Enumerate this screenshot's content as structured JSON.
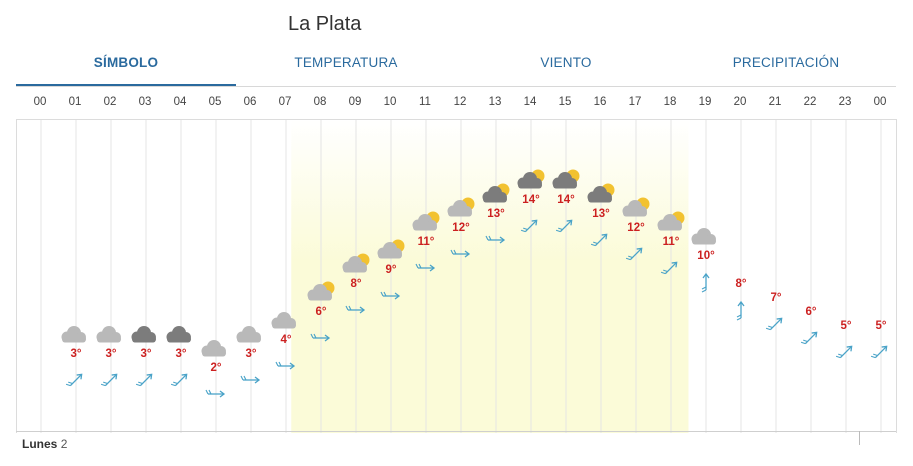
{
  "header": {
    "title": "La Plata"
  },
  "tabs": [
    {
      "label": "SÍMBOLO",
      "active": true
    },
    {
      "label": "TEMPERATURA",
      "active": false
    },
    {
      "label": "VIENTO",
      "active": false
    },
    {
      "label": "PRECIPITACIÓN",
      "active": false
    }
  ],
  "hours": [
    "00",
    "01",
    "02",
    "03",
    "04",
    "05",
    "06",
    "07",
    "08",
    "09",
    "10",
    "11",
    "12",
    "13",
    "14",
    "15",
    "16",
    "17",
    "18",
    "19",
    "20",
    "21",
    "22",
    "23",
    "00"
  ],
  "colors": {
    "tab_text": "#2a6a9e",
    "temp": "#cc2020",
    "wind": "#4aa3c8",
    "moon": "#4b3c8c",
    "sun": "#f2c230",
    "cloud_light": "#b9b9b9",
    "cloud_dark": "#7c7c7c",
    "daylight": "#fbfbd8"
  },
  "daylight_hours": {
    "start": 7.15,
    "end": 18.5
  },
  "forecast": [
    {
      "hour": "01",
      "temp_value": 3,
      "temp": "3°",
      "icon": "cloud-moon-icon",
      "cloud": "light",
      "wind": "ne"
    },
    {
      "hour": "02",
      "temp_value": 3,
      "temp": "3°",
      "icon": "cloud-moon-icon",
      "cloud": "light",
      "wind": "ne"
    },
    {
      "hour": "03",
      "temp_value": 3,
      "temp": "3°",
      "icon": "cloud-moon-icon",
      "cloud": "dark",
      "wind": "ne"
    },
    {
      "hour": "04",
      "temp_value": 3,
      "temp": "3°",
      "icon": "cloud-moon-icon",
      "cloud": "dark",
      "wind": "ne"
    },
    {
      "hour": "05",
      "temp_value": 2,
      "temp": "2°",
      "icon": "cloud-moon-icon",
      "cloud": "light",
      "wind": "e"
    },
    {
      "hour": "06",
      "temp_value": 3,
      "temp": "3°",
      "icon": "cloud-moon-icon",
      "cloud": "light",
      "wind": "e"
    },
    {
      "hour": "07",
      "temp_value": 4,
      "temp": "4°",
      "icon": "cloud-moon-icon",
      "cloud": "light",
      "wind": "e"
    },
    {
      "hour": "08",
      "temp_value": 6,
      "temp": "6°",
      "icon": "cloud-sun-icon",
      "cloud": "light",
      "wind": "e"
    },
    {
      "hour": "09",
      "temp_value": 8,
      "temp": "8°",
      "icon": "cloud-sun-icon",
      "cloud": "light",
      "wind": "e"
    },
    {
      "hour": "10",
      "temp_value": 9,
      "temp": "9°",
      "icon": "cloud-sun-icon",
      "cloud": "light",
      "wind": "e"
    },
    {
      "hour": "11",
      "temp_value": 11,
      "temp": "11°",
      "icon": "cloud-sun-icon",
      "cloud": "light",
      "wind": "e"
    },
    {
      "hour": "12",
      "temp_value": 12,
      "temp": "12°",
      "icon": "cloud-sun-icon",
      "cloud": "light",
      "wind": "e"
    },
    {
      "hour": "13",
      "temp_value": 13,
      "temp": "13°",
      "icon": "cloud-sun-icon",
      "cloud": "dark",
      "wind": "e"
    },
    {
      "hour": "14",
      "temp_value": 14,
      "temp": "14°",
      "icon": "cloud-sun-icon",
      "cloud": "dark",
      "wind": "ne"
    },
    {
      "hour": "15",
      "temp_value": 14,
      "temp": "14°",
      "icon": "cloud-sun-icon",
      "cloud": "dark",
      "wind": "ne"
    },
    {
      "hour": "16",
      "temp_value": 13,
      "temp": "13°",
      "icon": "cloud-sun-icon",
      "cloud": "dark",
      "wind": "ne"
    },
    {
      "hour": "17",
      "temp_value": 12,
      "temp": "12°",
      "icon": "cloud-sun-icon",
      "cloud": "light",
      "wind": "ne"
    },
    {
      "hour": "18",
      "temp_value": 11,
      "temp": "11°",
      "icon": "cloud-sun-icon",
      "cloud": "light",
      "wind": "ne"
    },
    {
      "hour": "19",
      "temp_value": 10,
      "temp": "10°",
      "icon": "cloud-moon-icon",
      "cloud": "light",
      "wind": "n"
    },
    {
      "hour": "20",
      "temp_value": 8,
      "temp": "8°",
      "icon": "moon-icon",
      "cloud": "none",
      "wind": "n"
    },
    {
      "hour": "21",
      "temp_value": 7,
      "temp": "7°",
      "icon": "moon-icon",
      "cloud": "none",
      "wind": "ne"
    },
    {
      "hour": "22",
      "temp_value": 6,
      "temp": "6°",
      "icon": "moon-icon",
      "cloud": "none",
      "wind": "ne"
    },
    {
      "hour": "23",
      "temp_value": 5,
      "temp": "5°",
      "icon": "moon-icon",
      "cloud": "none",
      "wind": "ne"
    },
    {
      "hour": "00",
      "temp_value": 5,
      "temp": "5°",
      "icon": "moon-icon",
      "cloud": "none",
      "wind": "ne"
    }
  ],
  "day": {
    "name": "Lunes",
    "number": "2"
  }
}
